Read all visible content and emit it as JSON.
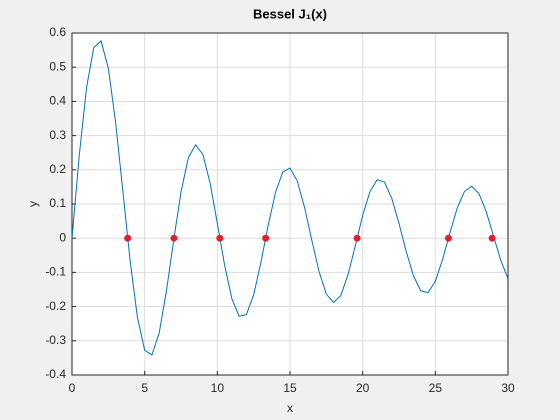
{
  "chart_data": {
    "type": "line",
    "title": "Bessel J₁(x)",
    "xlabel": "x",
    "ylabel": "y",
    "x": [
      0,
      0.5,
      1,
      1.5,
      2,
      2.5,
      3,
      3.5,
      4,
      4.5,
      5,
      5.5,
      6,
      6.5,
      7,
      7.5,
      8,
      8.5,
      9,
      9.5,
      10,
      10.5,
      11,
      11.5,
      12,
      12.5,
      13,
      13.5,
      14,
      14.5,
      15,
      15.5,
      16,
      16.5,
      17,
      17.5,
      18,
      18.5,
      19,
      19.5,
      20,
      20.5,
      21,
      21.5,
      22,
      22.5,
      23,
      23.5,
      24,
      24.5,
      25,
      25.5,
      26,
      26.5,
      27,
      27.5,
      28,
      28.5,
      29,
      29.5,
      30
    ],
    "series": [
      {
        "color": "#0072bd",
        "values": [
          0,
          0.2423,
          0.4401,
          0.5579,
          0.5767,
          0.4971,
          0.3391,
          0.1374,
          -0.066,
          -0.2311,
          -0.3276,
          -0.3414,
          -0.2767,
          -0.1538,
          -0.0047,
          0.1352,
          0.2346,
          0.2731,
          0.2453,
          0.1613,
          0.0435,
          -0.0789,
          -0.1768,
          -0.2284,
          -0.2234,
          -0.1655,
          -0.0703,
          0.038,
          0.1334,
          0.1934,
          0.2051,
          0.1672,
          0.0903,
          -0.0058,
          -0.0977,
          -0.1636,
          -0.188,
          -0.1674,
          -0.1053,
          -0.0209,
          0.0668,
          0.1361,
          0.1711,
          0.1638,
          0.1171,
          0.0432,
          -0.0395,
          -0.1108,
          -0.1541,
          -0.1591,
          -0.1258,
          -0.0618,
          0.015,
          0.0873,
          0.1365,
          0.1521,
          0.1305,
          0.0778,
          0.0069,
          -0.0644,
          -0.1187
        ]
      }
    ],
    "markers": {
      "color": "#e0202a",
      "x": [
        3.8317,
        7.0156,
        10.1735,
        13.3237,
        19.6159,
        25.9037,
        28.9084
      ],
      "values": [
        0,
        0,
        0,
        0,
        0,
        0,
        0
      ]
    },
    "xlim": [
      0,
      30
    ],
    "xticks": [
      0,
      5,
      10,
      15,
      20,
      25,
      30
    ],
    "ylim": [
      -0.4,
      0.6
    ],
    "yticks": [
      -0.4,
      -0.3,
      -0.2,
      -0.1,
      0,
      0.1,
      0.2,
      0.3,
      0.4,
      0.5,
      0.6
    ],
    "grid": true
  }
}
